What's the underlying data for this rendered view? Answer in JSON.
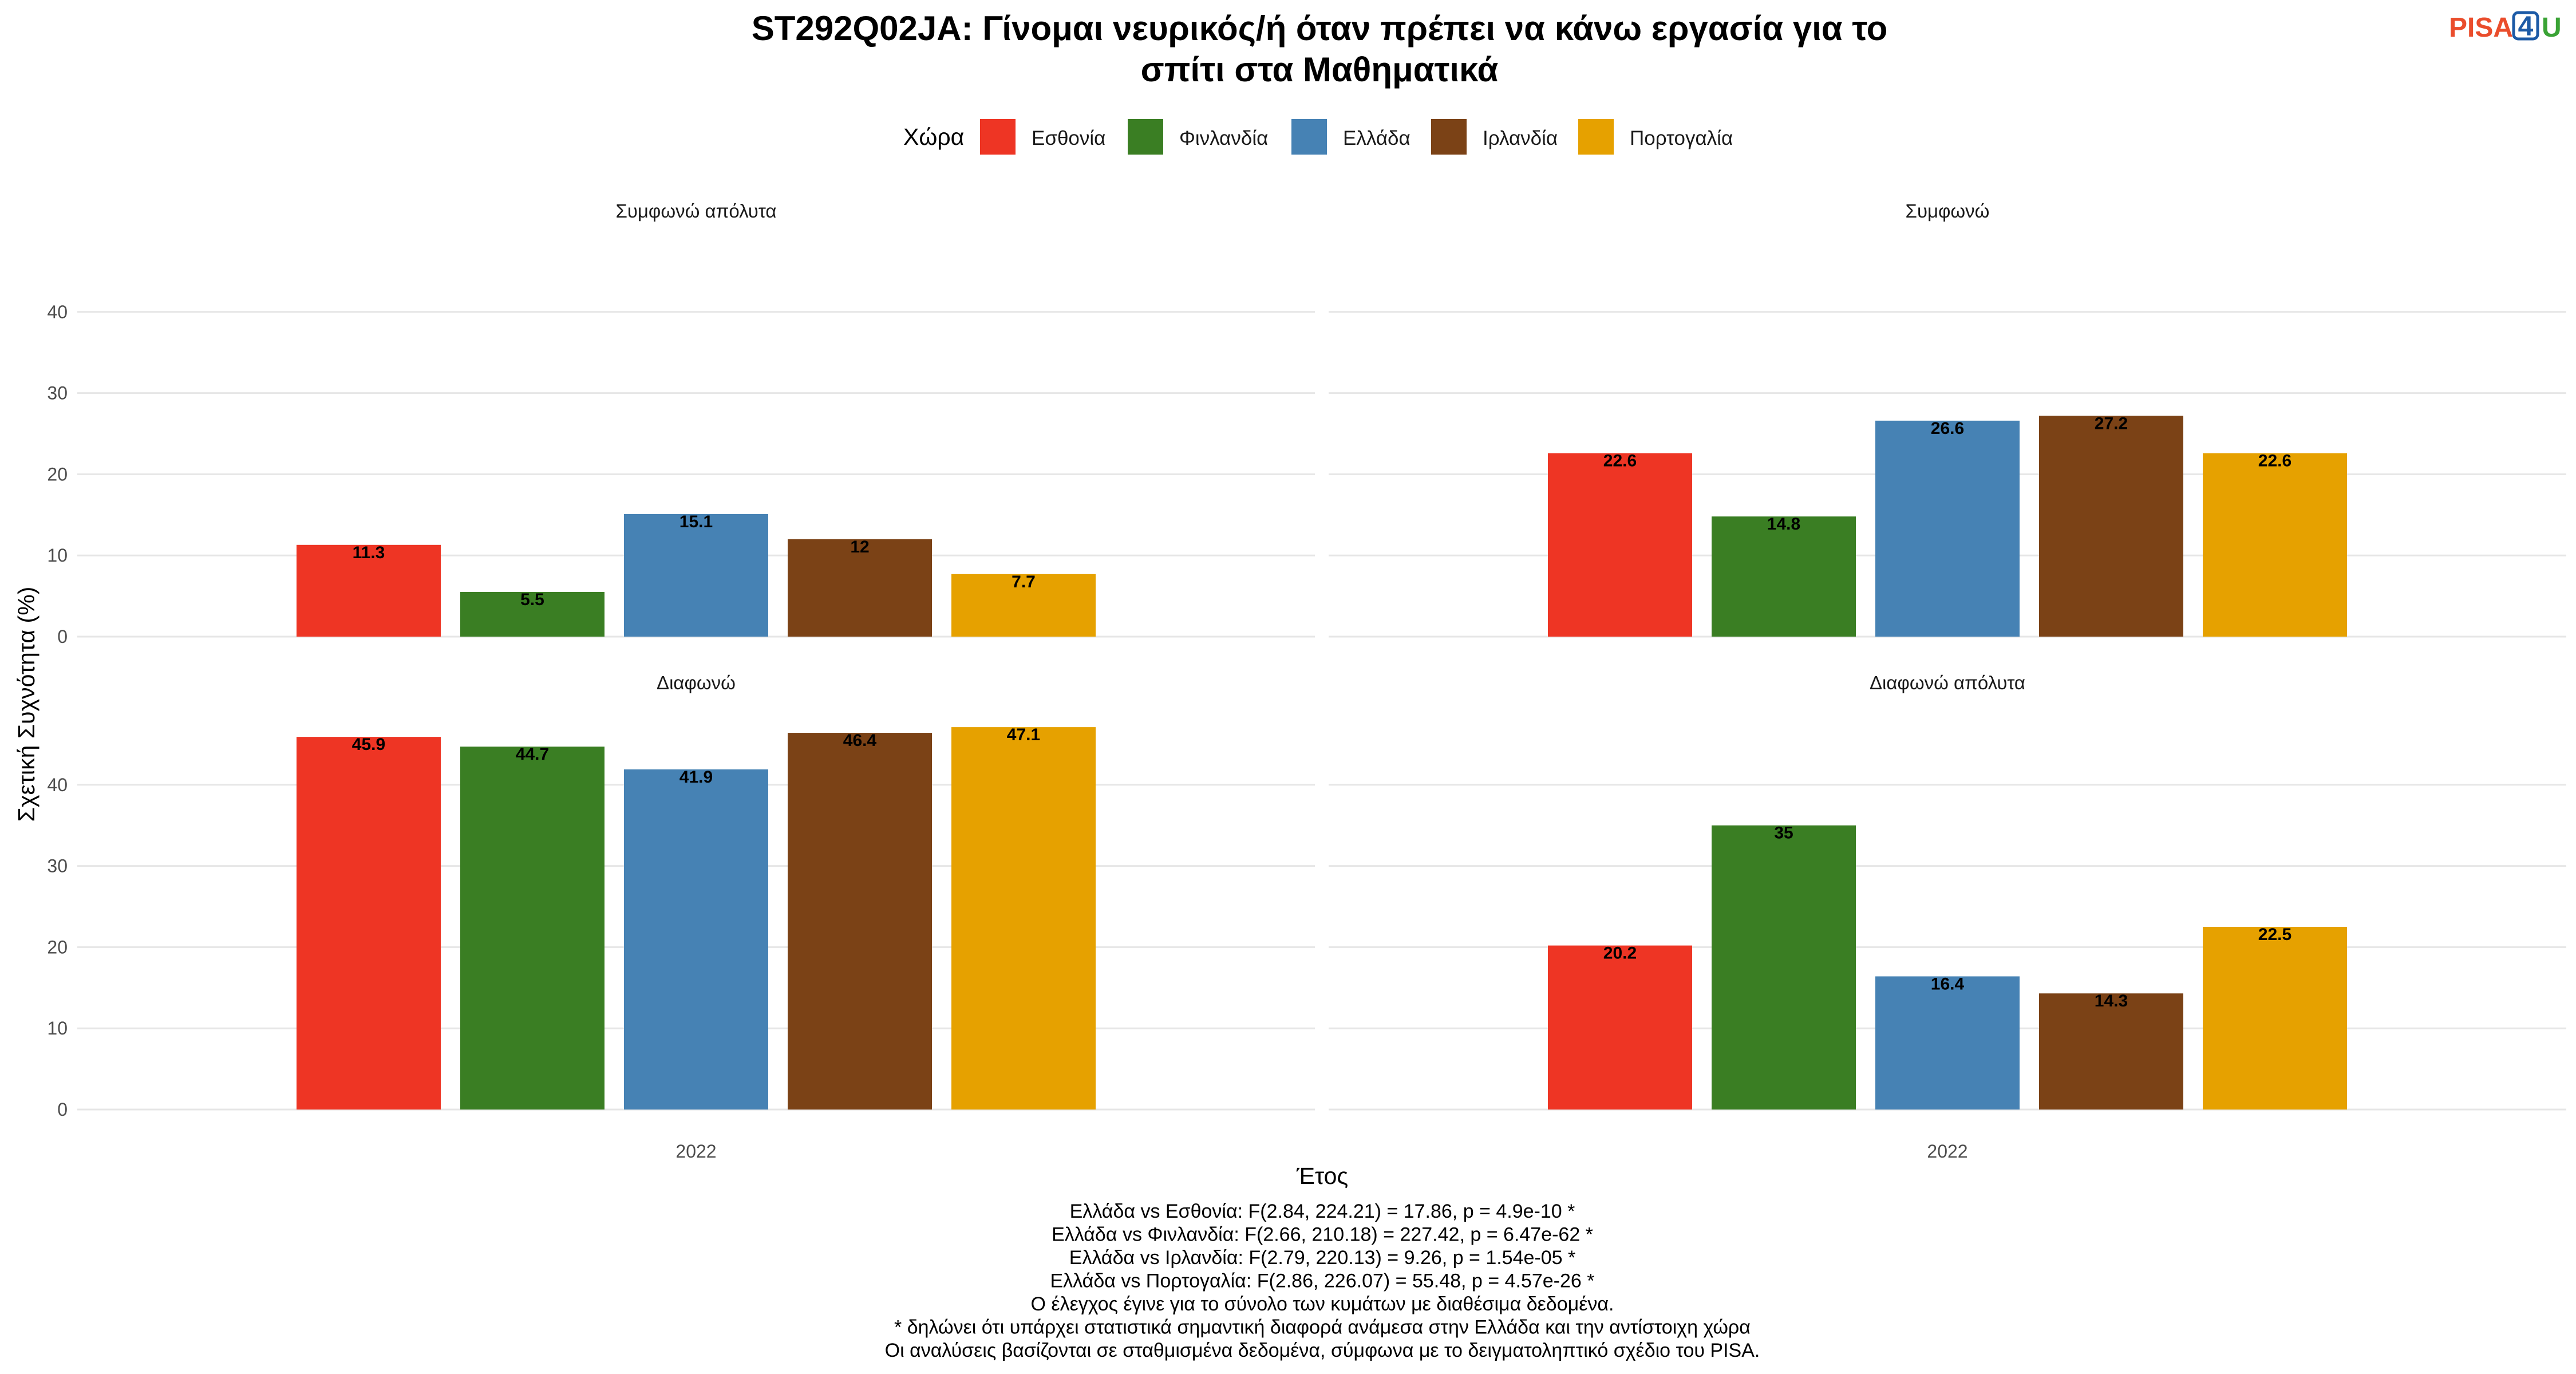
{
  "title_lines": [
    "ST292Q02JA: Γίνομαι νευρικός/ή όταν πρέπει να κάνω εργασία για το",
    "σπίτι στα Μαθηματικά"
  ],
  "logo": {
    "part1": "PISA",
    "part2": "4",
    "part3": "U",
    "color1": "#ea4d2c",
    "color2": "#1c5aa6",
    "color3": "#3aa335"
  },
  "legend": {
    "title": "Χώρα",
    "position": "top",
    "items": [
      {
        "label": "Εσθονία",
        "color": "#ee3524"
      },
      {
        "label": "Φινλανδία",
        "color": "#3a7e23"
      },
      {
        "label": "Ελλάδα",
        "color": "#4682b4"
      },
      {
        "label": "Ιρλανδία",
        "color": "#7b4216"
      },
      {
        "label": "Πορτογαλία",
        "color": "#e6a100"
      }
    ]
  },
  "chart_data": {
    "type": "bar",
    "facet_layout": "2x2",
    "y_label": "Σχετική Συχνότητα (%)",
    "x_label": "Έτος",
    "x_category": "2022",
    "y_ticks": [
      0,
      10,
      20,
      30,
      40
    ],
    "ylim": [
      0,
      47.1
    ],
    "grid": true,
    "series_names": [
      "Εσθονία",
      "Φινλανδία",
      "Ελλάδα",
      "Ιρλανδία",
      "Πορτογαλία"
    ],
    "panels": [
      {
        "title": "Συμφωνώ απόλυτα",
        "values": [
          11.3,
          5.5,
          15.1,
          12,
          7.7
        ],
        "labels": [
          "11.3",
          "5.5",
          "15.1",
          "12",
          "7.7"
        ]
      },
      {
        "title": "Συμφωνώ",
        "values": [
          22.6,
          14.8,
          26.6,
          27.2,
          22.6
        ],
        "labels": [
          "22.6",
          "14.8",
          "26.6",
          "27.2",
          "22.6"
        ]
      },
      {
        "title": "Διαφωνώ",
        "values": [
          45.9,
          44.7,
          41.9,
          46.4,
          47.1
        ],
        "labels": [
          "45.9",
          "44.7",
          "41.9",
          "46.4",
          "47.1"
        ]
      },
      {
        "title": "Διαφωνώ απόλυτα",
        "values": [
          20.2,
          35,
          16.4,
          14.3,
          22.5
        ],
        "labels": [
          "20.2",
          "35",
          "16.4",
          "14.3",
          "22.5"
        ]
      }
    ]
  },
  "notes": [
    "Ελλάδα vs Εσθονία: F(2.84, 224.21) = 17.86, p = 4.9e-10 *",
    "Ελλάδα vs Φινλανδία: F(2.66, 210.18) = 227.42, p = 6.47e-62 *",
    "Ελλάδα vs Ιρλανδία: F(2.79, 220.13) = 9.26, p = 1.54e-05 *",
    "Ελλάδα vs Πορτογαλία: F(2.86, 226.07) = 55.48, p = 4.57e-26 *",
    "Ο έλεγχος έγινε για το σύνολο των κυμάτων με διαθέσιμα δεδομένα.",
    "* δηλώνει ότι υπάρχει στατιστικά σημαντική διαφορά ανάμεσα στην Ελλάδα και την αντίστοιχη χώρα",
    "Οι αναλύσεις βασίζονται σε σταθμισμένα δεδομένα, σύμφωνα με το δειγματοληπτικό σχέδιο του PISA."
  ]
}
